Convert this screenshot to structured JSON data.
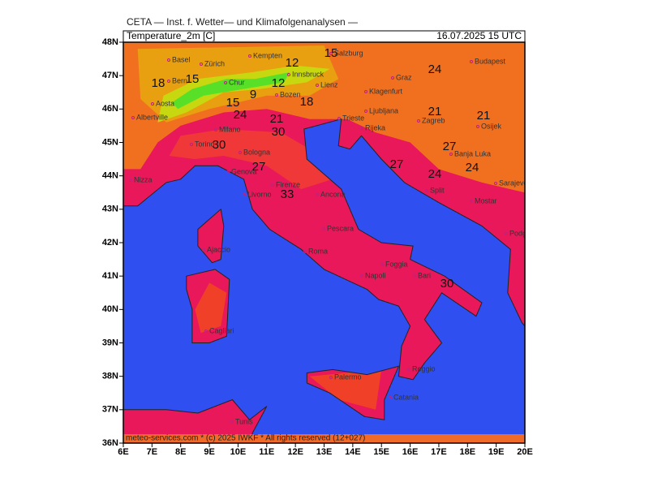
{
  "header": {
    "title": "CETA — Inst. f. Wetter— und Klimafolgenanalysen —",
    "panel": "Temperature_2m [C]",
    "date": "16.07.2025 15 UTC"
  },
  "footer": "meteo-services.com * (c) 2025 IWKF * All rights reserved (12+027)",
  "axes": {
    "lat": [
      {
        "value": 48,
        "label": "48N"
      },
      {
        "value": 47,
        "label": "47N"
      },
      {
        "value": 46,
        "label": "46N"
      },
      {
        "value": 45,
        "label": "45N"
      },
      {
        "value": 44,
        "label": "44N"
      },
      {
        "value": 43,
        "label": "43N"
      },
      {
        "value": 42,
        "label": "42N"
      },
      {
        "value": 41,
        "label": "41N"
      },
      {
        "value": 40,
        "label": "40N"
      },
      {
        "value": 39,
        "label": "39N"
      },
      {
        "value": 38,
        "label": "38N"
      },
      {
        "value": 37,
        "label": "37N"
      },
      {
        "value": 36,
        "label": "36N"
      }
    ],
    "lon": [
      {
        "value": 6,
        "label": "6E"
      },
      {
        "value": 7,
        "label": "7E"
      },
      {
        "value": 8,
        "label": "8E"
      },
      {
        "value": 9,
        "label": "9E"
      },
      {
        "value": 10,
        "label": "10E"
      },
      {
        "value": 11,
        "label": "11E"
      },
      {
        "value": 12,
        "label": "12E"
      },
      {
        "value": 13,
        "label": "13E"
      },
      {
        "value": 14,
        "label": "14E"
      },
      {
        "value": 15,
        "label": "15E"
      },
      {
        "value": 16,
        "label": "16E"
      },
      {
        "value": 17,
        "label": "17E"
      },
      {
        "value": 18,
        "label": "18E"
      },
      {
        "value": 19,
        "label": "19E"
      },
      {
        "value": 20,
        "label": "20E"
      }
    ]
  },
  "contour_labels": [
    18,
    15,
    12,
    15,
    12,
    9,
    15,
    24,
    21,
    18,
    30,
    24,
    21,
    21,
    30,
    27,
    33,
    27,
    24,
    27,
    24,
    30
  ],
  "cities": [
    "Basel",
    "Zürich",
    "Kempten",
    "Salzburg",
    "Innsbruck",
    "Chur",
    "Bern",
    "Graz",
    "Budapest",
    "Bozen",
    "Lienz",
    "Klagenfurt",
    "Ljubljana",
    "Zagreb",
    "Trieste",
    "Rijeka",
    "Aosta",
    "Albertville",
    "Milano",
    "Torino",
    "Genova",
    "Bologna",
    "Nizza",
    "Firenze",
    "Livorno",
    "Ancona",
    "Pescara",
    "Roma",
    "Napoli",
    "Bari",
    "Foggia",
    "Ajaccio",
    "Cagliari",
    "Palermo",
    "Catania",
    "Tunis",
    "Osijek",
    "Banja Luka",
    "Sarajevo",
    "Mostar",
    "Split",
    "Podgorica",
    "Reggio"
  ]
}
